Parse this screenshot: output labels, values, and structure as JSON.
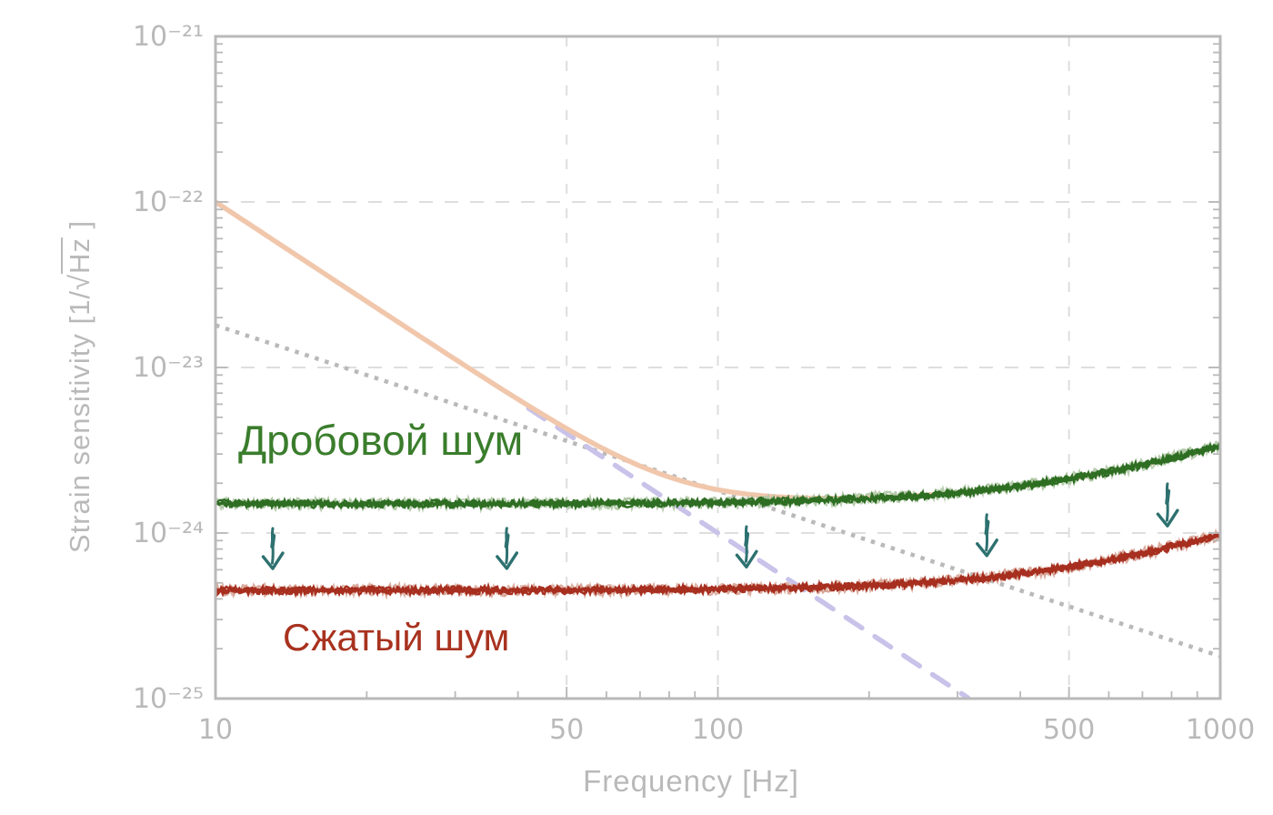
{
  "chart_data": {
    "type": "line",
    "title": "",
    "xlabel": "Frequency [Hz]",
    "ylabel": "Strain sensitivity [1/√Hz ]",
    "ylabel_parts": {
      "prefix": "Strain sensitivity [1/",
      "radical": "√",
      "radicand": "Hz",
      "suffix": " ]"
    },
    "x_axis": {
      "scale": "log",
      "min": 10,
      "max": 1000,
      "tick_values": [
        10,
        50,
        100,
        500,
        1000
      ],
      "tick_labels": [
        "10",
        "50",
        "100",
        "500",
        "1000"
      ],
      "gridline_values": [
        50,
        100,
        500
      ],
      "minor_tick_mantissas": [
        2,
        3,
        4,
        5,
        6,
        7,
        8,
        9
      ]
    },
    "y_axis": {
      "scale": "log",
      "min": 1e-25,
      "max": 1e-21,
      "tick_exponents": [
        -21,
        -22,
        -23,
        -24,
        -25
      ],
      "tick_labels": [
        "10⁻²¹",
        "10⁻²²",
        "10⁻²³",
        "10⁻²⁴",
        "10⁻²⁵"
      ],
      "gridline_exponents": [
        -22,
        -23,
        -24
      ],
      "minor_tick_mantissas": [
        2,
        3,
        4,
        5,
        6,
        7,
        8,
        9
      ]
    },
    "grid": {
      "on": true,
      "style": "dashed",
      "color": "#dedede"
    },
    "legend": "none (inline curve labels)",
    "series": [
      {
        "name": "total-quantum-noise-unsqueezed",
        "label": "",
        "style": "solid",
        "color": "#f1c7ac",
        "model": "sqrt(rp^2 + shot^2)",
        "params": {
          "rp_amp_at_10hz": 1e-22,
          "rp_slope": -2,
          "shot_flat": 1.5e-24,
          "shot_pole_hz": 500
        },
        "f_range": [
          10,
          1000
        ],
        "points": [
          [
            10,
            1e-22
          ],
          [
            20,
            2.5e-23
          ],
          [
            50,
            4.3e-24
          ],
          [
            100,
            1.8e-24
          ],
          [
            200,
            1.6e-24
          ],
          [
            500,
            1.9e-24
          ],
          [
            1000,
            3.4e-24
          ]
        ]
      },
      {
        "name": "radiation-pressure-noise",
        "label": "",
        "style": "dashed",
        "color": "#c9c2e9",
        "model": "amp * (10/f)^2",
        "params": {
          "amp_at_10hz": 1e-22,
          "slope": -2
        },
        "f_range": [
          42,
          316
        ],
        "points": [
          [
            42,
            5.7e-24
          ],
          [
            100,
            1e-24
          ],
          [
            200,
            2.5e-25
          ],
          [
            316,
            1e-25
          ]
        ]
      },
      {
        "name": "standard-quantum-limit",
        "label": "",
        "style": "dotted",
        "color": "#b9b9b9",
        "model": "amp * (10/f)",
        "params": {
          "amp_at_10hz": 1.8e-23,
          "slope": -1
        },
        "f_range": [
          10,
          1000
        ],
        "points": [
          [
            10,
            1.8e-23
          ],
          [
            100,
            1.8e-24
          ],
          [
            1000,
            1.8e-25
          ]
        ]
      },
      {
        "name": "shot-noise",
        "label": "Дробовой шум",
        "style": "noisy",
        "color": "#2e6e23",
        "halo_color": "#aec7a3",
        "label_color": "#3a7d2c",
        "model": "flat * sqrt(1+(f/pole)^2)",
        "params": {
          "flat": 1.5e-24,
          "pole_hz": 500
        },
        "f_range": [
          10,
          1000
        ],
        "points": [
          [
            10,
            1.5e-24
          ],
          [
            100,
            1.53e-24
          ],
          [
            300,
            1.75e-24
          ],
          [
            500,
            2.1e-24
          ],
          [
            1000,
            3.35e-24
          ]
        ]
      },
      {
        "name": "squeezed-noise",
        "label": "Сжатый шум",
        "style": "noisy",
        "color": "#a72f1f",
        "halo_color": "#d6a294",
        "label_color": "#a8321f",
        "model": "flat * sqrt(1+(f/pole)^2)",
        "params": {
          "flat": 4.5e-25,
          "pole_hz": 520
        },
        "f_range": [
          10,
          1000
        ],
        "points": [
          [
            10,
            4.5e-25
          ],
          [
            100,
            4.6e-25
          ],
          [
            300,
            5.2e-25
          ],
          [
            500,
            6.2e-25
          ],
          [
            1000,
            9.3e-25
          ]
        ]
      }
    ],
    "arrows": {
      "meaning": "squeezing improvement from shot-noise down to squeezed-noise",
      "direction": "down",
      "color": "#2d7170",
      "frequencies": [
        13,
        38,
        114,
        343,
        785
      ]
    },
    "axis_style": {
      "frame_color": "#b9b9b9",
      "tick_label_color": "#b9b9b9",
      "axis_title_color": "#b9b9b9"
    }
  }
}
